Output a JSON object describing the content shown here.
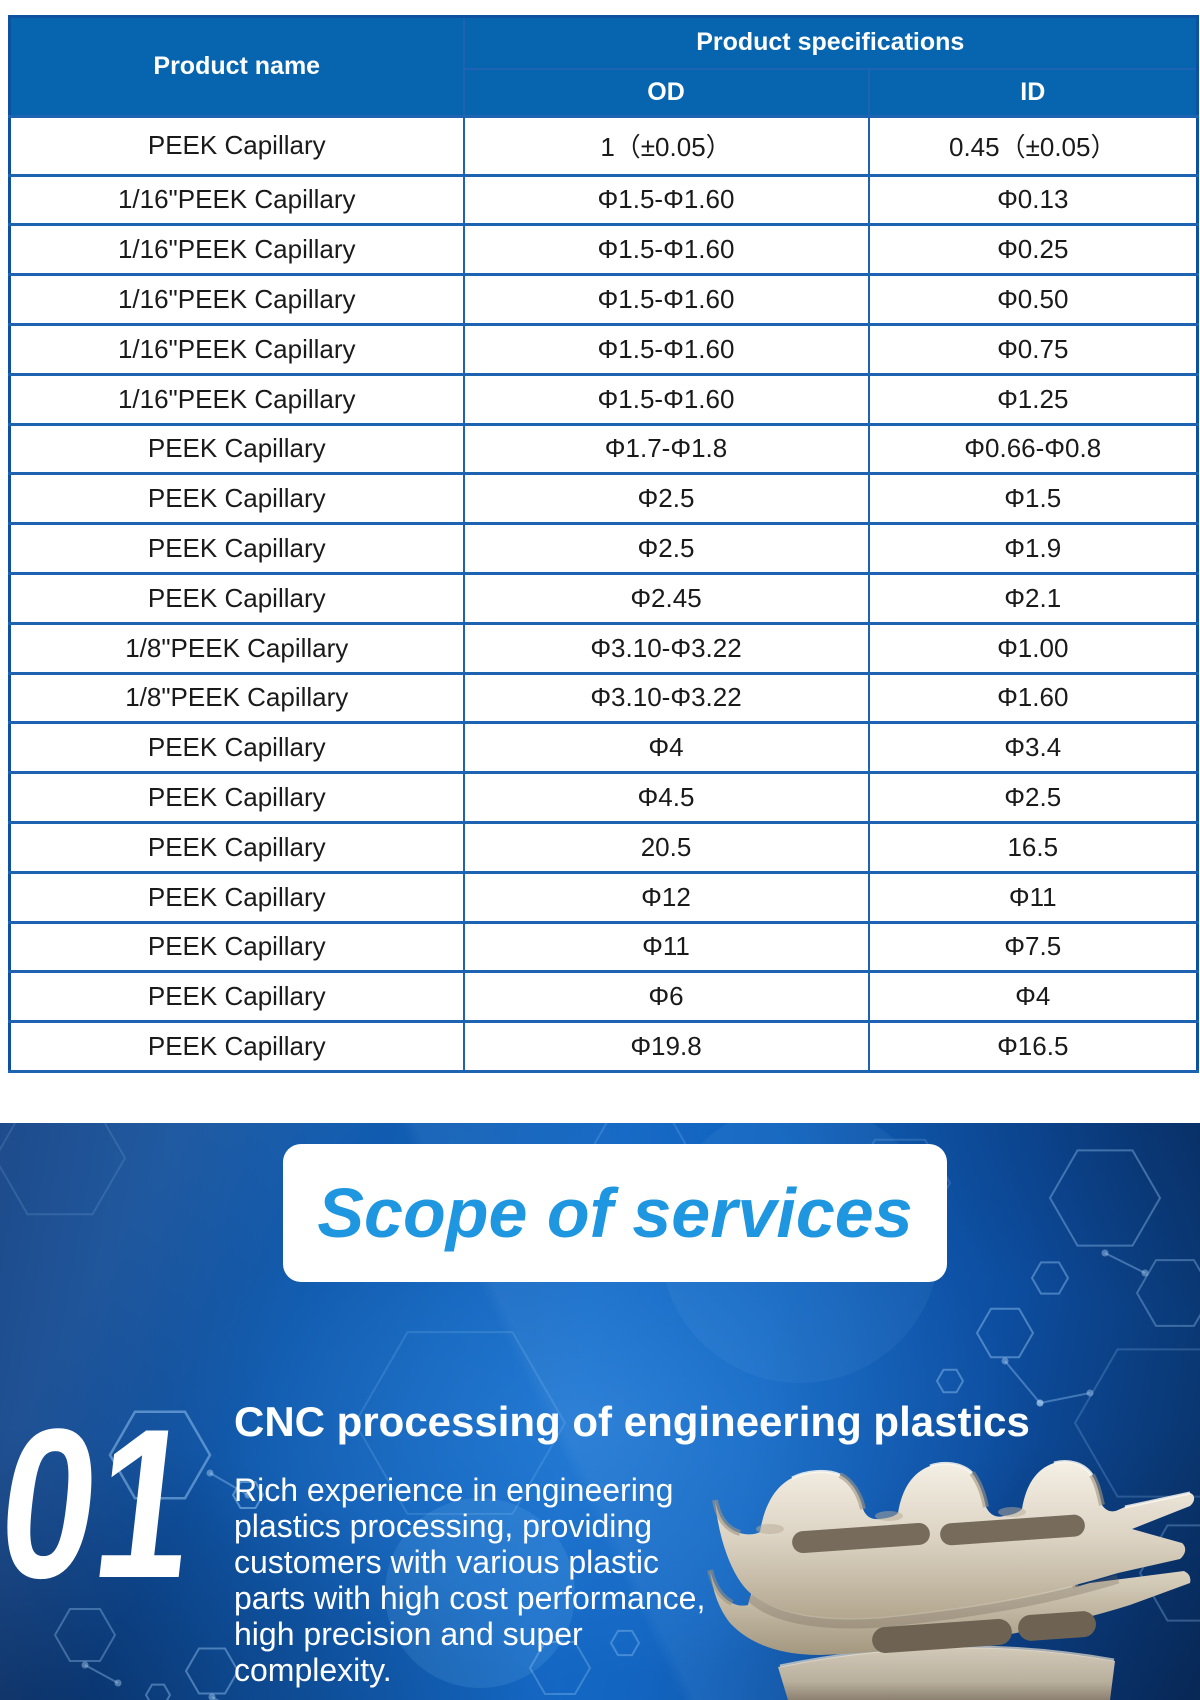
{
  "table": {
    "headers": {
      "product_name": "Product name",
      "product_specifications": "Product specifications",
      "od": "OD",
      "id": "ID"
    },
    "rows": [
      {
        "name": "PEEK Capillary",
        "od": "1（±0.05）",
        "id": "0.45（±0.05）"
      },
      {
        "name": "1/16\"PEEK Capillary",
        "od": "Φ1.5-Φ1.60",
        "id": "Φ0.13"
      },
      {
        "name": "1/16\"PEEK Capillary",
        "od": "Φ1.5-Φ1.60",
        "id": "Φ0.25"
      },
      {
        "name": "1/16\"PEEK Capillary",
        "od": "Φ1.5-Φ1.60",
        "id": "Φ0.50"
      },
      {
        "name": "1/16\"PEEK Capillary",
        "od": "Φ1.5-Φ1.60",
        "id": "Φ0.75"
      },
      {
        "name": "1/16\"PEEK Capillary",
        "od": "Φ1.5-Φ1.60",
        "id": "Φ1.25"
      },
      {
        "name": "PEEK Capillary",
        "od": "Φ1.7-Φ1.8",
        "id": "Φ0.66-Φ0.8"
      },
      {
        "name": "PEEK Capillary",
        "od": "Φ2.5",
        "id": "Φ1.5"
      },
      {
        "name": "PEEK Capillary",
        "od": "Φ2.5",
        "id": "Φ1.9"
      },
      {
        "name": "PEEK Capillary",
        "od": "Φ2.45",
        "id": "Φ2.1"
      },
      {
        "name": "1/8\"PEEK Capillary",
        "od": "Φ3.10-Φ3.22",
        "id": "Φ1.00"
      },
      {
        "name": "1/8\"PEEK Capillary",
        "od": "Φ3.10-Φ3.22",
        "id": "Φ1.60"
      },
      {
        "name": "PEEK Capillary",
        "od": "Φ4",
        "id": "Φ3.4"
      },
      {
        "name": "PEEK Capillary",
        "od": "Φ4.5",
        "id": "Φ2.5"
      },
      {
        "name": "PEEK Capillary",
        "od": "20.5",
        "id": "16.5"
      },
      {
        "name": "PEEK Capillary",
        "od": "Φ12",
        "id": "Φ11"
      },
      {
        "name": "PEEK Capillary",
        "od": "Φ11",
        "id": "Φ7.5"
      },
      {
        "name": "PEEK Capillary",
        "od": "Φ6",
        "id": "Φ4"
      },
      {
        "name": "PEEK Capillary",
        "od": "Φ19.8",
        "id": "Φ16.5"
      }
    ]
  },
  "services": {
    "title": "Scope of services",
    "item_number": "01",
    "heading": "CNC processing of engineering plastics",
    "description_lines": [
      "Rich experience in engineering",
      "plastics processing, providing",
      "customers with various plastic",
      "parts with high cost performance,",
      "high precision and super",
      "complexity."
    ]
  },
  "colors": {
    "header_blue": "#0765b0",
    "border_blue": "#1e63b2",
    "panel_blue": "#1570cd",
    "title_blue": "#1e96e0",
    "part_beige": "#d6ccbb"
  }
}
